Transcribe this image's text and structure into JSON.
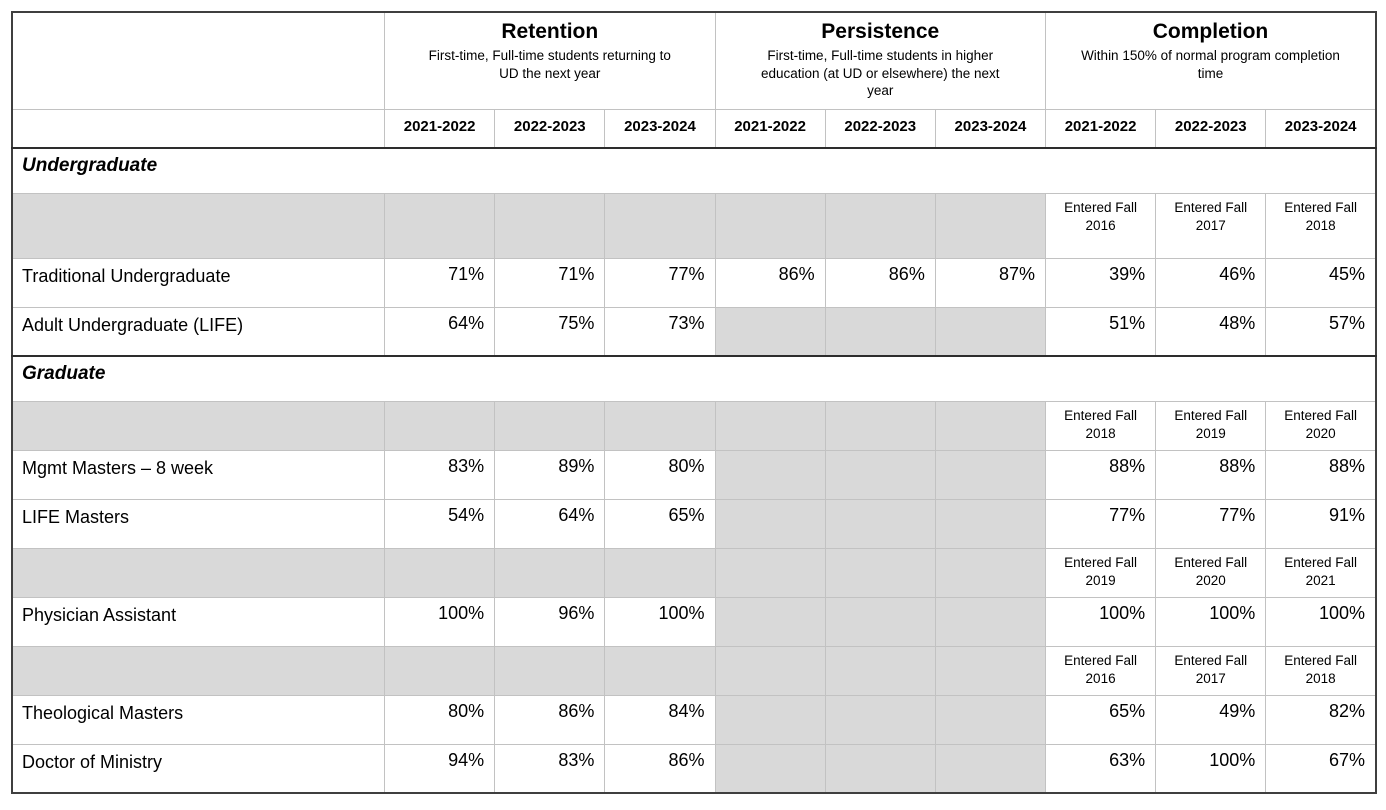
{
  "colors": {
    "cell_gray": "#d9d9d9",
    "grid_light": "#c2c2c2",
    "grid_dark": "#2d2d2d",
    "text": "#000000",
    "background": "#ffffff"
  },
  "chart_data": {
    "type": "table",
    "column_groups": [
      {
        "title": "Retention",
        "subtitle": "First-time, Full-time students returning to UD the next year"
      },
      {
        "title": "Persistence",
        "subtitle": "First-time, Full-time students in higher education (at UD or elsewhere) the next year"
      },
      {
        "title": "Completion",
        "subtitle": "Within 150% of normal program completion time"
      }
    ],
    "year_headers": [
      "2021-2022",
      "2022-2023",
      "2023-2024",
      "2021-2022",
      "2022-2023",
      "2023-2024",
      "2021-2022",
      "2022-2023",
      "2023-2024"
    ],
    "rows": [
      {
        "type": "section",
        "label": "Undergraduate"
      },
      {
        "type": "cohort",
        "completion_labels": [
          "Entered Fall 2016",
          "Entered Fall 2017",
          "Entered Fall 2018"
        ]
      },
      {
        "type": "data",
        "label": "Traditional Undergraduate",
        "retention": [
          "71%",
          "71%",
          "77%"
        ],
        "persistence": [
          "86%",
          "86%",
          "87%"
        ],
        "completion": [
          "39%",
          "46%",
          "45%"
        ]
      },
      {
        "type": "data",
        "label": "Adult Undergraduate (LIFE)",
        "retention": [
          "64%",
          "75%",
          "73%"
        ],
        "persistence": null,
        "completion": [
          "51%",
          "48%",
          "57%"
        ]
      },
      {
        "type": "section",
        "label": "Graduate"
      },
      {
        "type": "cohort",
        "completion_labels": [
          "Entered Fall 2018",
          "Entered Fall 2019",
          "Entered Fall 2020"
        ]
      },
      {
        "type": "data",
        "label": "Mgmt Masters – 8 week",
        "retention": [
          "83%",
          "89%",
          "80%"
        ],
        "persistence": null,
        "completion": [
          "88%",
          "88%",
          "88%"
        ]
      },
      {
        "type": "data",
        "label": "LIFE Masters",
        "retention": [
          "54%",
          "64%",
          "65%"
        ],
        "persistence": null,
        "completion": [
          "77%",
          "77%",
          "91%"
        ]
      },
      {
        "type": "cohort",
        "completion_labels": [
          "Entered Fall 2019",
          "Entered Fall 2020",
          "Entered Fall 2021"
        ]
      },
      {
        "type": "data",
        "label": "Physician Assistant",
        "retention": [
          "100%",
          "96%",
          "100%"
        ],
        "persistence": null,
        "completion": [
          "100%",
          "100%",
          "100%"
        ]
      },
      {
        "type": "cohort",
        "completion_labels": [
          "Entered Fall 2016",
          "Entered Fall 2017",
          "Entered Fall 2018"
        ]
      },
      {
        "type": "data",
        "label": "Theological Masters",
        "retention": [
          "80%",
          "86%",
          "84%"
        ],
        "persistence": null,
        "completion": [
          "65%",
          "49%",
          "82%"
        ]
      },
      {
        "type": "data",
        "label": "Doctor of Ministry",
        "retention": [
          "94%",
          "83%",
          "86%"
        ],
        "persistence": null,
        "completion": [
          "63%",
          "100%",
          "67%"
        ]
      }
    ]
  }
}
